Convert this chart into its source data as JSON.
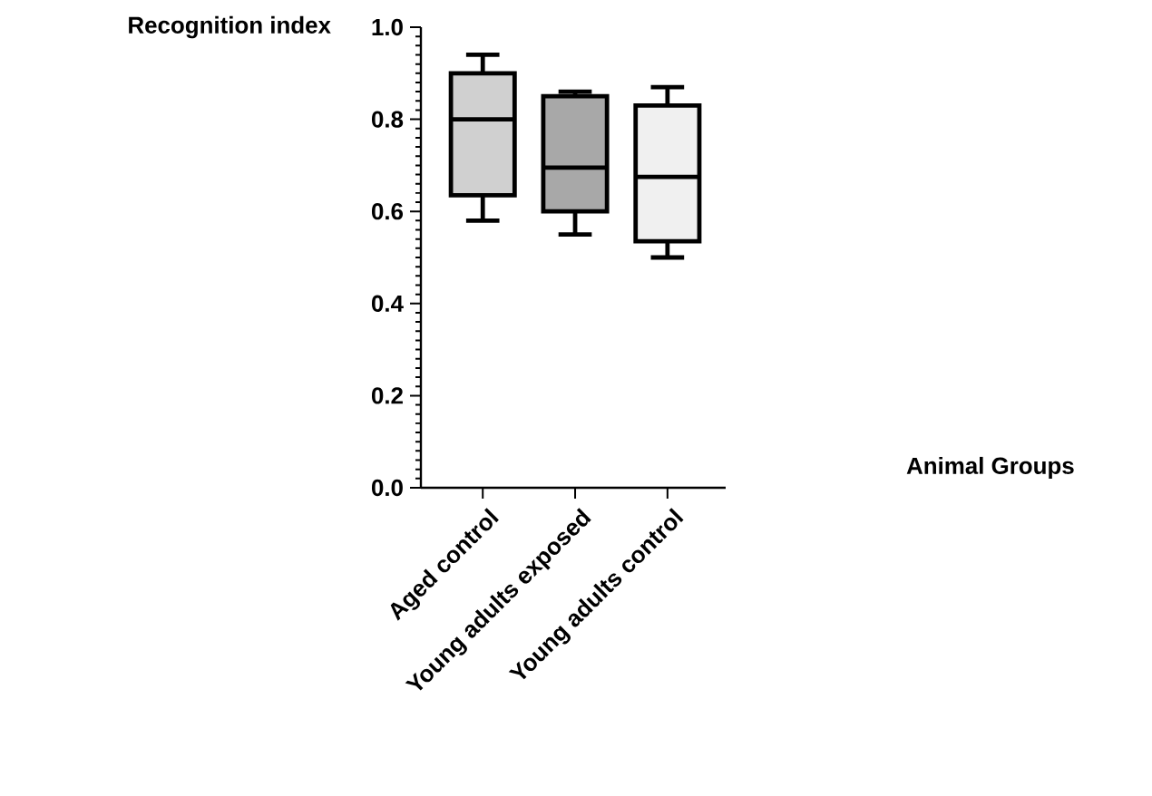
{
  "chart_data": {
    "type": "box",
    "ylabel": "Recognition index",
    "annotations": [
      "Animal Groups"
    ],
    "categories": [
      "Aged control",
      "Young adults exposed",
      "Young adults control"
    ],
    "colors": [
      "#d0d0d0",
      "#a8a8a8",
      "#f0f0f0"
    ],
    "boxes": [
      {
        "low": 0.58,
        "q1": 0.635,
        "median": 0.8,
        "q3": 0.9,
        "high": 0.94
      },
      {
        "low": 0.55,
        "q1": 0.6,
        "median": 0.695,
        "q3": 0.85,
        "high": 0.86
      },
      {
        "low": 0.5,
        "q1": 0.535,
        "median": 0.675,
        "q3": 0.83,
        "high": 0.87
      }
    ],
    "ylim": [
      0,
      1
    ],
    "yticks": [
      {
        "value": 0,
        "label": "0.0"
      },
      0.2,
      0.4,
      0.6,
      0.8,
      {
        "value": 1,
        "label": "1.0"
      }
    ],
    "grid": false
  }
}
